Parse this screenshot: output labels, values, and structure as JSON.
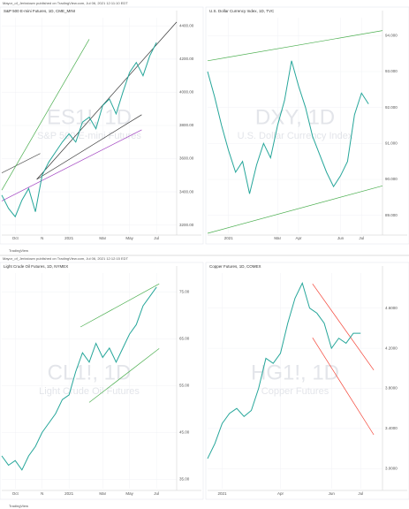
{
  "blocks": [
    {
      "header": "Mayor_of_Jerkstown published on TradingView.com, Jul 06, 2021 12:11:10 EDT",
      "footer": "TradingView"
    },
    {
      "header": "Mayor_of_Jerkstown published on TradingView.com, Jul 06, 2021 12:12:15 EDT",
      "footer": "TradingView"
    }
  ],
  "chart_data": [
    {
      "type": "line",
      "title": "S&P 500 E-mini Futures, 1D, CME_MINI",
      "watermark": "ES1!, 1D",
      "watermark_subtitle": "S&P 500 E-mini Futures",
      "color": "#26a69a",
      "values": [
        3380,
        3300,
        3250,
        3350,
        3420,
        3280,
        3500,
        3580,
        3640,
        3700,
        3750,
        3700,
        3820,
        3850,
        3780,
        3920,
        3960,
        3870,
        4000,
        4120,
        4180,
        4100,
        4220,
        4300
      ],
      "xlim": [
        0,
        26
      ],
      "xticks": [
        {
          "value": 2,
          "label": "Oct"
        },
        {
          "value": 6,
          "label": "N"
        },
        {
          "value": 10,
          "label": "2021"
        },
        {
          "value": 15,
          "label": "Mar"
        },
        {
          "value": 19,
          "label": "May"
        },
        {
          "value": 23,
          "label": "Jul"
        }
      ],
      "ylim": [
        3150,
        4450
      ],
      "yticks": [
        {
          "value": 3200,
          "label": "3200.00"
        },
        {
          "value": 3400,
          "label": "3400.00"
        },
        {
          "value": 3600,
          "label": "3600.00"
        },
        {
          "value": 3800,
          "label": "3800.00"
        },
        {
          "value": 4000,
          "label": "4000.00"
        },
        {
          "value": 4200,
          "label": "4200.00"
        },
        {
          "value": 4400,
          "label": "4400.00"
        }
      ]
    },
    {
      "type": "line",
      "title": "U.S. Dollar Currency Index, 1D, TVC",
      "watermark": "DXY, 1D",
      "watermark_subtitle": "U.S. Dollar Currency Index",
      "color": "#26a69a",
      "values": [
        93.0,
        92.3,
        91.5,
        90.8,
        90.2,
        90.5,
        89.6,
        90.4,
        91.0,
        90.6,
        91.5,
        92.2,
        93.3,
        92.6,
        92.0,
        91.2,
        90.7,
        90.2,
        89.8,
        90.1,
        90.5,
        91.8,
        92.4,
        92.1
      ],
      "xlim": [
        0,
        25
      ],
      "xticks": [
        {
          "value": 3,
          "label": "2021"
        },
        {
          "value": 10,
          "label": "Mar"
        },
        {
          "value": 13,
          "label": "Apr"
        },
        {
          "value": 19,
          "label": "Jun"
        },
        {
          "value": 22,
          "label": "Jul"
        }
      ],
      "ylim": [
        88.5,
        94.5
      ],
      "yticks": [
        {
          "value": 89,
          "label": "89.000"
        },
        {
          "value": 90,
          "label": "90.000"
        },
        {
          "value": 91,
          "label": "91.000"
        },
        {
          "value": 92,
          "label": "92.000"
        },
        {
          "value": 93,
          "label": "93.000"
        },
        {
          "value": 94,
          "label": "94.000"
        }
      ]
    },
    {
      "type": "line",
      "title": "Light Crude Oil Futures, 1D, NYMEX",
      "watermark": "CL1!, 1D",
      "watermark_subtitle": "Light Crude Oil Futures",
      "color": "#26a69a",
      "values": [
        40,
        38,
        39,
        37,
        40,
        42,
        45,
        47,
        49,
        52,
        53,
        58,
        62,
        60,
        64,
        61,
        63,
        60,
        63,
        66,
        68,
        72,
        74,
        76
      ],
      "xlim": [
        0,
        26
      ],
      "xticks": [
        {
          "value": 2,
          "label": "Oct"
        },
        {
          "value": 6,
          "label": "N"
        },
        {
          "value": 10,
          "label": "2021"
        },
        {
          "value": 15,
          "label": "Mar"
        },
        {
          "value": 19,
          "label": "May"
        },
        {
          "value": 23,
          "label": "Jul"
        }
      ],
      "ylim": [
        33,
        79
      ],
      "yticks": [
        {
          "value": 35,
          "label": "35.00"
        },
        {
          "value": 45,
          "label": "45.00"
        },
        {
          "value": 55,
          "label": "55.00"
        },
        {
          "value": 65,
          "label": "65.00"
        },
        {
          "value": 75,
          "label": "75.00"
        }
      ]
    },
    {
      "type": "line",
      "title": "Copper Futures, 1D, COMEX",
      "watermark": "HG1!, 1D",
      "watermark_subtitle": "Copper Futures",
      "color": "#26a69a",
      "values": [
        3.1,
        3.25,
        3.45,
        3.55,
        3.6,
        3.52,
        3.58,
        3.8,
        4.1,
        4.05,
        4.15,
        4.45,
        4.7,
        4.85,
        4.6,
        4.55,
        4.45,
        4.2,
        4.3,
        4.25,
        4.35,
        4.35
      ],
      "xlim": [
        0,
        24
      ],
      "xticks": [
        {
          "value": 2,
          "label": "2021"
        },
        {
          "value": 10,
          "label": "Apr"
        },
        {
          "value": 17,
          "label": "Jun"
        },
        {
          "value": 21,
          "label": "Jul"
        }
      ],
      "ylim": [
        2.8,
        4.95
      ],
      "yticks": [
        {
          "value": 3.0,
          "label": "3.0000"
        },
        {
          "value": 3.4,
          "label": "3.4000"
        },
        {
          "value": 3.8,
          "label": "3.8000"
        },
        {
          "value": 4.2,
          "label": "4.2000"
        },
        {
          "value": 4.6,
          "label": "4.6000"
        }
      ]
    }
  ]
}
